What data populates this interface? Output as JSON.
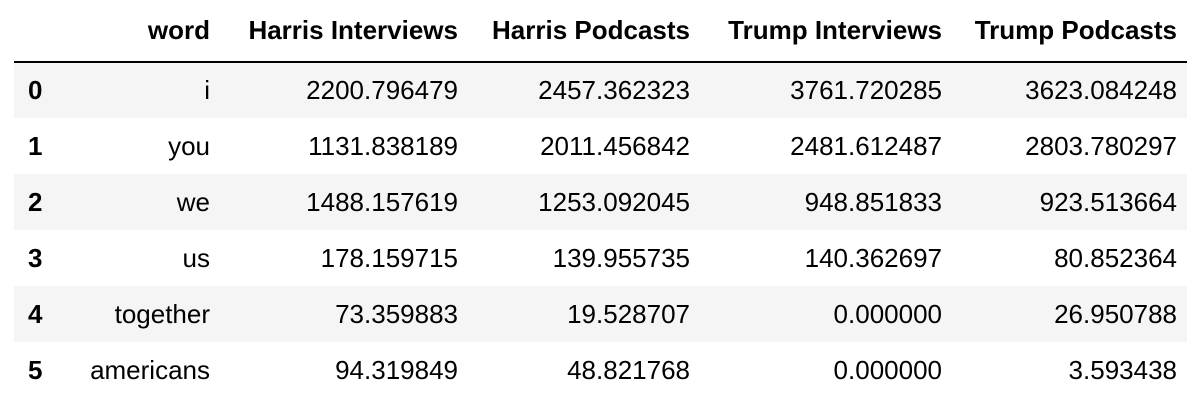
{
  "table": {
    "headers": [
      "",
      "word",
      "Harris Interviews",
      "Harris Podcasts",
      "Trump Interviews",
      "Trump Podcasts"
    ],
    "rows": [
      {
        "index": "0",
        "word": "i",
        "harris_interviews": "2200.796479",
        "harris_podcasts": "2457.362323",
        "trump_interviews": "3761.720285",
        "trump_podcasts": "3623.084248"
      },
      {
        "index": "1",
        "word": "you",
        "harris_interviews": "1131.838189",
        "harris_podcasts": "2011.456842",
        "trump_interviews": "2481.612487",
        "trump_podcasts": "2803.780297"
      },
      {
        "index": "2",
        "word": "we",
        "harris_interviews": "1488.157619",
        "harris_podcasts": "1253.092045",
        "trump_interviews": "948.851833",
        "trump_podcasts": "923.513664"
      },
      {
        "index": "3",
        "word": "us",
        "harris_interviews": "178.159715",
        "harris_podcasts": "139.955735",
        "trump_interviews": "140.362697",
        "trump_podcasts": "80.852364"
      },
      {
        "index": "4",
        "word": "together",
        "harris_interviews": "73.359883",
        "harris_podcasts": "19.528707",
        "trump_interviews": "0.000000",
        "trump_podcasts": "26.950788"
      },
      {
        "index": "5",
        "word": "americans",
        "harris_interviews": "94.319849",
        "harris_podcasts": "48.821768",
        "trump_interviews": "0.000000",
        "trump_podcasts": "3.593438"
      }
    ]
  },
  "colors": {
    "row_stripe": "#f5f5f5",
    "background": "#ffffff",
    "text": "#000000"
  }
}
